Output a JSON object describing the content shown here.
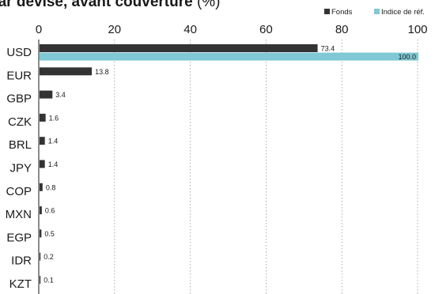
{
  "chart_data": {
    "type": "bar",
    "orientation": "horizontal",
    "title": "par devise, avant couverture",
    "title_unit": "(%)",
    "categories": [
      "USD",
      "EUR",
      "GBP",
      "CZK",
      "BRL",
      "JPY",
      "COP",
      "MXN",
      "EGP",
      "IDR",
      "KZT"
    ],
    "series": [
      {
        "name": "Fonds",
        "color": "#333333",
        "values": [
          73.4,
          13.8,
          3.4,
          1.6,
          1.4,
          1.4,
          0.8,
          0.6,
          0.5,
          0.2,
          0.1
        ],
        "labels": [
          "73.4",
          "13.8",
          "3.4",
          "1.6",
          "1.4",
          "1.4",
          "0.8",
          "0.6",
          "0.5",
          "0.2",
          "0.1"
        ]
      },
      {
        "name": "Indice de réf.",
        "color": "#7fc8d4",
        "values": [
          100.0,
          null,
          null,
          null,
          null,
          null,
          null,
          null,
          null,
          null,
          null
        ],
        "labels": [
          "100.0",
          "",
          "",
          "",
          "",
          "",
          "",
          "",
          "",
          "",
          ""
        ]
      }
    ],
    "xlim": [
      0,
      100
    ],
    "xticks": [
      "0",
      "20",
      "40",
      "60",
      "80",
      "100"
    ],
    "xtick_values": [
      0,
      20,
      40,
      60,
      80,
      100
    ],
    "grid": "vertical-dotted",
    "legend_position": "top-right"
  }
}
